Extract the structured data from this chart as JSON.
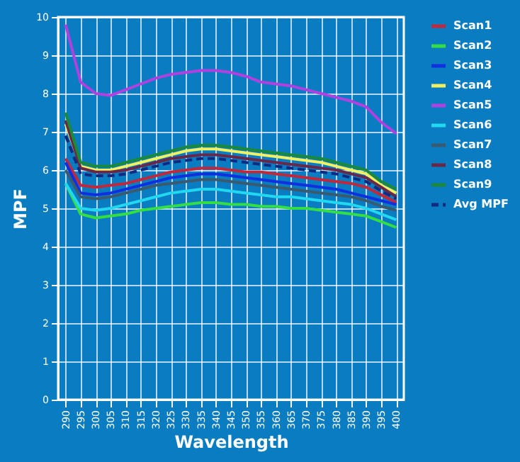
{
  "chart_data": {
    "type": "line",
    "xlabel": "Wavelength",
    "ylabel": "MPF",
    "categories": [
      "290",
      "295",
      "300",
      "305",
      "310",
      "315",
      "320",
      "325",
      "330",
      "335",
      "340",
      "345",
      "350",
      "355",
      "360",
      "365",
      "370",
      "375",
      "380",
      "385",
      "390",
      "395",
      "400"
    ],
    "ylim": [
      0,
      10
    ],
    "yticks": [
      0,
      1,
      2,
      3,
      4,
      5,
      6,
      7,
      8,
      9,
      10
    ],
    "grid": true,
    "legend": "right",
    "series": [
      {
        "name": "Scan1",
        "color": "#c0283c",
        "line_style": "solid",
        "values": [
          6.3,
          5.6,
          5.55,
          5.6,
          5.65,
          5.75,
          5.85,
          5.95,
          6.0,
          6.05,
          6.05,
          6.0,
          5.95,
          5.95,
          5.9,
          5.85,
          5.8,
          5.75,
          5.7,
          5.65,
          5.55,
          5.35,
          5.15
        ]
      },
      {
        "name": "Scan2",
        "color": "#33dd44",
        "line_style": "solid",
        "values": [
          5.65,
          4.85,
          4.75,
          4.8,
          4.85,
          4.95,
          5.0,
          5.05,
          5.1,
          5.15,
          5.15,
          5.1,
          5.1,
          5.05,
          5.05,
          5.0,
          5.0,
          4.95,
          4.9,
          4.85,
          4.8,
          4.65,
          4.5
        ]
      },
      {
        "name": "Scan3",
        "color": "#1030e0",
        "line_style": "solid",
        "values": [
          6.2,
          5.4,
          5.35,
          5.4,
          5.5,
          5.6,
          5.7,
          5.8,
          5.85,
          5.9,
          5.9,
          5.85,
          5.8,
          5.75,
          5.7,
          5.65,
          5.6,
          5.55,
          5.5,
          5.4,
          5.3,
          5.2,
          5.1
        ]
      },
      {
        "name": "Scan4",
        "color": "#f0f060",
        "line_style": "solid",
        "values": [
          7.2,
          6.1,
          6.0,
          6.0,
          6.1,
          6.2,
          6.3,
          6.4,
          6.5,
          6.55,
          6.55,
          6.5,
          6.45,
          6.4,
          6.35,
          6.3,
          6.25,
          6.2,
          6.1,
          6.0,
          5.9,
          5.6,
          5.4
        ]
      },
      {
        "name": "Scan5",
        "color": "#b040e0",
        "line_style": "solid",
        "values": [
          9.8,
          8.3,
          8.0,
          7.95,
          8.1,
          8.25,
          8.4,
          8.5,
          8.55,
          8.6,
          8.6,
          8.55,
          8.45,
          8.3,
          8.25,
          8.2,
          8.1,
          8.0,
          7.9,
          7.8,
          7.65,
          7.25,
          6.95
        ]
      },
      {
        "name": "Scan6",
        "color": "#20d8f0",
        "line_style": "solid",
        "values": [
          5.65,
          5.0,
          4.95,
          5.0,
          5.1,
          5.2,
          5.3,
          5.4,
          5.45,
          5.5,
          5.5,
          5.45,
          5.4,
          5.35,
          5.3,
          5.3,
          5.25,
          5.2,
          5.15,
          5.1,
          5.0,
          4.85,
          4.7
        ]
      },
      {
        "name": "Scan7",
        "color": "#3a5a70",
        "line_style": "solid",
        "values": [
          6.0,
          5.3,
          5.25,
          5.3,
          5.4,
          5.5,
          5.6,
          5.65,
          5.7,
          5.75,
          5.75,
          5.7,
          5.65,
          5.6,
          5.55,
          5.5,
          5.45,
          5.4,
          5.35,
          5.3,
          5.2,
          5.05,
          4.95
        ]
      },
      {
        "name": "Scan8",
        "color": "#6a2848",
        "line_style": "solid",
        "values": [
          7.3,
          6.05,
          5.95,
          5.95,
          6.0,
          6.1,
          6.2,
          6.3,
          6.35,
          6.4,
          6.4,
          6.35,
          6.3,
          6.25,
          6.2,
          6.15,
          6.1,
          6.05,
          6.0,
          5.9,
          5.8,
          5.55,
          5.3
        ]
      },
      {
        "name": "Scan9",
        "color": "#1a8a3a",
        "line_style": "solid",
        "values": [
          7.5,
          6.2,
          6.1,
          6.1,
          6.2,
          6.3,
          6.4,
          6.5,
          6.6,
          6.65,
          6.65,
          6.6,
          6.55,
          6.5,
          6.45,
          6.4,
          6.35,
          6.3,
          6.2,
          6.1,
          6.0,
          5.7,
          5.5
        ]
      },
      {
        "name": "Avg MPF",
        "color": "#102a80",
        "line_style": "dashed",
        "values": [
          6.9,
          5.9,
          5.85,
          5.85,
          5.9,
          6.0,
          6.1,
          6.2,
          6.25,
          6.3,
          6.3,
          6.25,
          6.2,
          6.15,
          6.1,
          6.05,
          6.0,
          5.95,
          5.9,
          5.8,
          5.7,
          5.45,
          5.25
        ]
      }
    ]
  }
}
